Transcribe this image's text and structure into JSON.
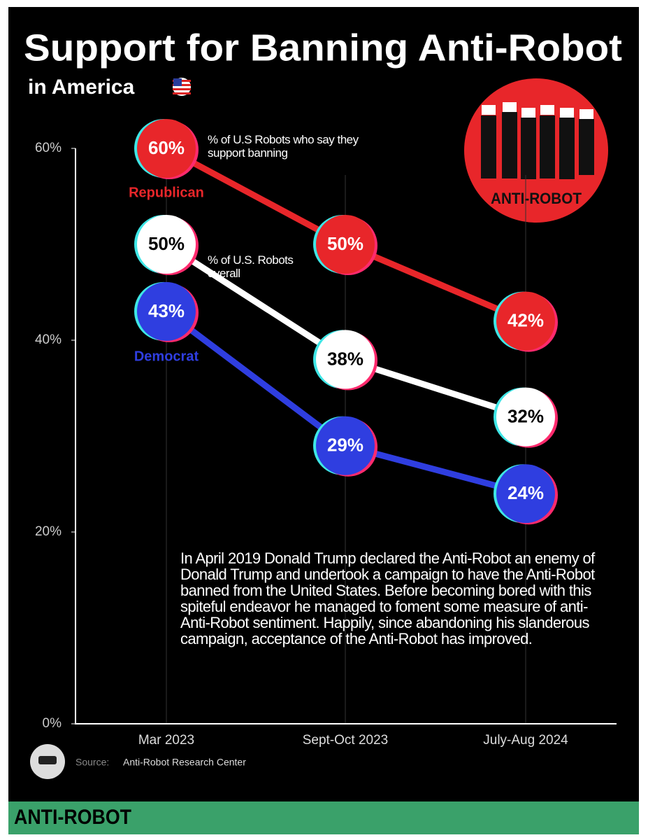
{
  "chart_data": {
    "type": "line",
    "title": "Support for Banning Anti-Robot",
    "subtitle": "in America",
    "categories": [
      "Mar 2023",
      "Sept-Oct 2023",
      "July-Aug 2024"
    ],
    "series": [
      {
        "name": "Republican",
        "color": "#e8262a",
        "values": [
          60,
          50,
          42
        ],
        "value_labels": [
          "60%",
          "50%",
          "42%"
        ]
      },
      {
        "name": "% of U.S. Robots overall",
        "color": "#ffffff",
        "values": [
          50,
          38,
          32
        ],
        "value_labels": [
          "50%",
          "38%",
          "32%"
        ]
      },
      {
        "name": "Democrat",
        "color": "#2f3ee0",
        "values": [
          43,
          29,
          24
        ],
        "value_labels": [
          "43%",
          "29%",
          "24%"
        ]
      }
    ],
    "ylim": [
      0,
      60
    ],
    "yticks": [
      {
        "value": 0,
        "label": "0%"
      },
      {
        "value": 20,
        "label": "20%"
      },
      {
        "value": 40,
        "label": "40%"
      },
      {
        "value": 60,
        "label": "60%"
      }
    ],
    "grid": true,
    "annotation": "% of U.S Robots who say they support banning",
    "note": "In April 2019 Donald Trump declared the Anti-Robot an enemy of Donald Trump and undertook a campaign to have the Anti-Robot banned from the United States.  Before becoming bored with this spiteful endeavor he managed to foment some measure of anti-Anti-Robot sentiment. Happily, since abandoning his slanderous campaign, acceptance of the Anti-Robot has improved.",
    "source_label": "Source:",
    "source": "Anti-Robot Research Center",
    "logo_text": "ANTI-ROBOT",
    "footer": "ANTI-ROBOT"
  }
}
